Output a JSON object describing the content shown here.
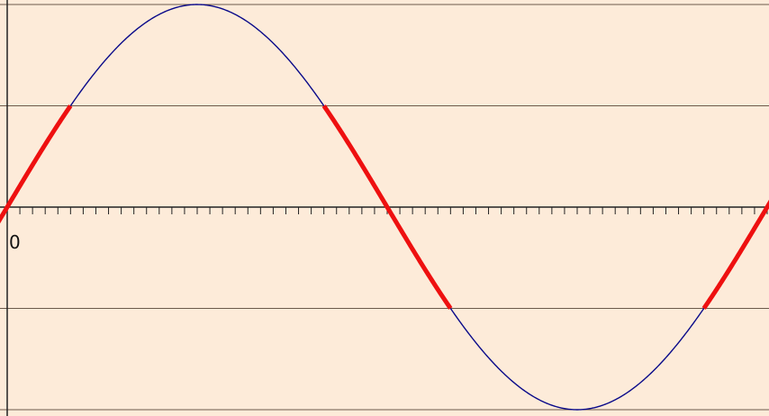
{
  "chart_data": {
    "type": "line",
    "title": "",
    "xlabel": "",
    "ylabel": "",
    "grid": true,
    "x_start": 0,
    "x_end": 6.6,
    "ylim": [
      -1,
      1
    ],
    "x_tick_labels": [
      {
        "label": "0",
        "value": 0
      }
    ],
    "horizontal_gridlines": [
      1,
      0.5,
      -0.5,
      -1
    ],
    "minor_tick_step": 0.104719755,
    "series": [
      {
        "kind": "curve",
        "function": "sin(x)",
        "domain": [
          -0.12,
          6.6
        ],
        "color": "#0a0a8a"
      },
      {
        "kind": "highlight",
        "color": "#ee1010",
        "segments": [
          {
            "x_start": -0.12,
            "x_end": 0.5236
          },
          {
            "x_start": 2.618,
            "x_end": 3.6652
          },
          {
            "x_start": 5.7596,
            "x_end": 6.6
          }
        ]
      }
    ],
    "colors": {
      "background": "#fdebd9",
      "axis": "#222222",
      "grid": "#6b5a4a",
      "curve": "#0a0a8a",
      "highlight": "#ee1010"
    }
  }
}
